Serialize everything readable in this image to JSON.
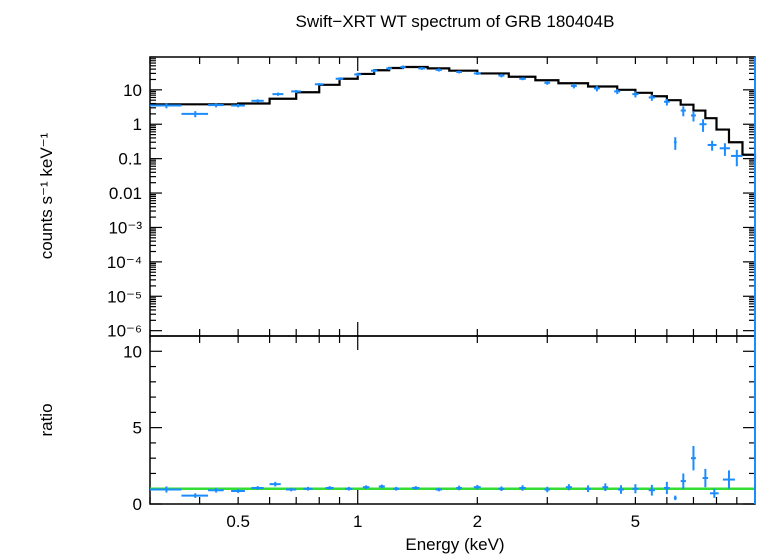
{
  "chart_data": [
    {
      "type": "scatter",
      "panel": "top",
      "title": "Swift−XRT WT spectrum of GRB 180404B",
      "ylabel": "counts s⁻¹ keV⁻¹",
      "xlabel": "",
      "xscale": "log",
      "yscale": "log",
      "xlim": [
        0.3,
        10
      ],
      "ylim": [
        7e-07,
        90
      ],
      "ytick_labels": [
        "10",
        "1",
        "0.1",
        "0.01",
        "10⁻³",
        "10⁻⁴",
        "10⁻⁵",
        "10⁻⁶"
      ],
      "ytick_values": [
        10,
        1,
        0.1,
        0.01,
        0.001,
        0.0001,
        1e-05,
        1e-06
      ],
      "data_color": "#1a8cff",
      "model_color": "#000000",
      "series": [
        {
          "name": "data",
          "points": [
            [
              0.33,
              3.5,
              0.03,
              0.6
            ],
            [
              0.39,
              2.0,
              0.03,
              0.4
            ],
            [
              0.44,
              3.6,
              0.02,
              0.5
            ],
            [
              0.5,
              3.5,
              0.02,
              0.4
            ],
            [
              0.56,
              4.8,
              0.02,
              0.5
            ],
            [
              0.63,
              7.5,
              0.02,
              0.8
            ],
            [
              0.7,
              9.0,
              0.02,
              0.9
            ],
            [
              0.8,
              14.5,
              0.02,
              1.2
            ],
            [
              0.9,
              21,
              0.02,
              2
            ],
            [
              1.0,
              28,
              0.02,
              3
            ],
            [
              1.1,
              36,
              0.02,
              4
            ],
            [
              1.2,
              42,
              0.02,
              4
            ],
            [
              1.3,
              46,
              0.02,
              5
            ],
            [
              1.45,
              42,
              0.03,
              4
            ],
            [
              1.6,
              38,
              0.03,
              4
            ],
            [
              1.8,
              33,
              0.03,
              3
            ],
            [
              2.0,
              30,
              0.04,
              3
            ],
            [
              2.3,
              26,
              0.04,
              3
            ],
            [
              2.6,
              21,
              0.05,
              2
            ],
            [
              3.0,
              16,
              0.05,
              2
            ],
            [
              3.5,
              13,
              0.06,
              2
            ],
            [
              4.0,
              11,
              0.07,
              2
            ],
            [
              4.5,
              9,
              0.08,
              1.5
            ],
            [
              5.0,
              7.5,
              0.09,
              1.5
            ],
            [
              5.5,
              6,
              0.1,
              1.2
            ],
            [
              6.0,
              4.5,
              0.1,
              1.0
            ],
            [
              6.3,
              0.3,
              0.05,
              0.12
            ],
            [
              6.6,
              2.5,
              0.1,
              0.8
            ],
            [
              7.0,
              1.8,
              0.1,
              0.6
            ],
            [
              7.4,
              1.0,
              0.15,
              0.4
            ],
            [
              7.8,
              0.25,
              0.2,
              0.08
            ],
            [
              8.4,
              0.2,
              0.25,
              0.08
            ],
            [
              9.0,
              0.12,
              0.3,
              0.06
            ]
          ]
        },
        {
          "name": "model",
          "points": [
            [
              0.3,
              3.8
            ],
            [
              0.45,
              3.8
            ],
            [
              0.5,
              4.0
            ],
            [
              0.6,
              5.5
            ],
            [
              0.7,
              8.5
            ],
            [
              0.8,
              14
            ],
            [
              0.9,
              21
            ],
            [
              1.0,
              29
            ],
            [
              1.1,
              37
            ],
            [
              1.2,
              43
            ],
            [
              1.3,
              46
            ],
            [
              1.5,
              42
            ],
            [
              1.7,
              36
            ],
            [
              2.0,
              30
            ],
            [
              2.4,
              24
            ],
            [
              2.8,
              19
            ],
            [
              3.2,
              15.5
            ],
            [
              3.8,
              12.5
            ],
            [
              4.5,
              10
            ],
            [
              5.0,
              8.2
            ],
            [
              5.5,
              6.5
            ],
            [
              6.0,
              5.0
            ],
            [
              6.5,
              3.7
            ],
            [
              7.0,
              2.5
            ],
            [
              7.5,
              1.5
            ],
            [
              8.0,
              0.7
            ],
            [
              8.6,
              0.3
            ],
            [
              9.3,
              0.13
            ],
            [
              10,
              0.1
            ]
          ]
        }
      ]
    },
    {
      "type": "scatter",
      "panel": "bottom",
      "xlabel": "Energy (keV)",
      "ylabel": "ratio",
      "xscale": "log",
      "yscale": "linear",
      "xlim": [
        0.3,
        10
      ],
      "ylim": [
        0,
        11
      ],
      "ytick_labels": [
        "0",
        "5",
        "10"
      ],
      "ytick_values": [
        0,
        5,
        10
      ],
      "xtick_labels": [
        "0.5",
        "1",
        "2",
        "5"
      ],
      "xtick_values": [
        0.5,
        1,
        2,
        5
      ],
      "reference_line": 1,
      "reference_color": "#33dd33",
      "data_color": "#1a8cff",
      "series": [
        {
          "name": "ratio",
          "points": [
            [
              0.33,
              0.95,
              0.03,
              0.2
            ],
            [
              0.39,
              0.55,
              0.03,
              0.15
            ],
            [
              0.44,
              0.9,
              0.02,
              0.15
            ],
            [
              0.5,
              0.85,
              0.02,
              0.12
            ],
            [
              0.56,
              1.05,
              0.02,
              0.12
            ],
            [
              0.62,
              1.3,
              0.02,
              0.15
            ],
            [
              0.68,
              0.95,
              0.02,
              0.12
            ],
            [
              0.75,
              1.0,
              0.02,
              0.12
            ],
            [
              0.85,
              1.05,
              0.02,
              0.12
            ],
            [
              0.95,
              1.0,
              0.02,
              0.12
            ],
            [
              1.05,
              1.1,
              0.02,
              0.12
            ],
            [
              1.15,
              1.15,
              0.02,
              0.12
            ],
            [
              1.25,
              1.0,
              0.02,
              0.12
            ],
            [
              1.4,
              1.05,
              0.03,
              0.12
            ],
            [
              1.6,
              0.95,
              0.03,
              0.12
            ],
            [
              1.8,
              1.05,
              0.03,
              0.15
            ],
            [
              2.0,
              1.1,
              0.04,
              0.15
            ],
            [
              2.3,
              1.0,
              0.04,
              0.15
            ],
            [
              2.6,
              1.05,
              0.05,
              0.18
            ],
            [
              3.0,
              0.95,
              0.05,
              0.18
            ],
            [
              3.4,
              1.1,
              0.06,
              0.2
            ],
            [
              3.8,
              1.0,
              0.06,
              0.22
            ],
            [
              4.2,
              1.1,
              0.07,
              0.25
            ],
            [
              4.6,
              0.95,
              0.08,
              0.28
            ],
            [
              5.0,
              1.0,
              0.09,
              0.3
            ],
            [
              5.5,
              0.9,
              0.1,
              0.35
            ],
            [
              6.0,
              1.05,
              0.1,
              0.4
            ],
            [
              6.3,
              0.4,
              0.05,
              0.15
            ],
            [
              6.6,
              1.5,
              0.1,
              0.5
            ],
            [
              7.0,
              3.0,
              0.1,
              0.8
            ],
            [
              7.5,
              1.7,
              0.12,
              0.6
            ],
            [
              7.9,
              0.7,
              0.2,
              0.3
            ],
            [
              8.6,
              1.6,
              0.3,
              0.6
            ]
          ]
        }
      ]
    }
  ]
}
